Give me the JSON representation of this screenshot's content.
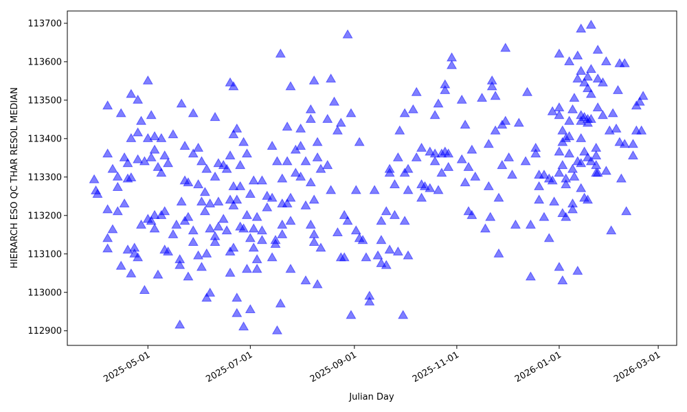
{
  "chart_data": {
    "type": "scatter",
    "x_label": "Julian Day",
    "y_label": "HIERARCH ESO QC THAR RESOL MEDIAN",
    "color": "#0000ff",
    "marker": "triangle",
    "alpha": 0.5,
    "xlim": [
      "2025-03-14",
      "2026-03-12"
    ],
    "xticks": [
      "2025-05-01",
      "2025-07-01",
      "2025-09-01",
      "2025-11-01",
      "2026-01-01",
      "2026-03-01"
    ],
    "ylim": [
      112862,
      113732
    ],
    "yticks": [
      112900,
      113000,
      113100,
      113200,
      113300,
      113400,
      113500,
      113600,
      113700
    ],
    "x": [
      "2025-03-30",
      "2025-03-31",
      "2025-04-01",
      "2025-04-07",
      "2025-04-07",
      "2025-04-07",
      "2025-04-07",
      "2025-04-07",
      "2025-04-10",
      "2025-04-10",
      "2025-04-13",
      "2025-04-13",
      "2025-04-13",
      "2025-04-15",
      "2025-04-15",
      "2025-04-17",
      "2025-04-17",
      "2025-04-19",
      "2025-04-19",
      "2025-04-19",
      "2025-04-21",
      "2025-04-21",
      "2025-04-21",
      "2025-04-21",
      "2025-04-23",
      "2025-04-23",
      "2025-04-25",
      "2025-04-25",
      "2025-04-25",
      "2025-04-25",
      "2025-04-27",
      "2025-04-27",
      "2025-04-29",
      "2025-04-29",
      "2025-05-01",
      "2025-05-01",
      "2025-05-01",
      "2025-05-03",
      "2025-05-03",
      "2025-05-03",
      "2025-05-05",
      "2025-05-05",
      "2025-05-05",
      "2025-05-05",
      "2025-05-07",
      "2025-05-07",
      "2025-05-09",
      "2025-05-09",
      "2025-05-09",
      "2025-05-11",
      "2025-05-11",
      "2025-05-11",
      "2025-05-13",
      "2025-05-13",
      "2025-05-16",
      "2025-05-16",
      "2025-05-18",
      "2025-05-20",
      "2025-05-20",
      "2025-05-20",
      "2025-05-21",
      "2025-05-21",
      "2025-05-23",
      "2025-05-23",
      "2025-05-23",
      "2025-05-25",
      "2025-05-25",
      "2025-05-25",
      "2025-05-28",
      "2025-05-28",
      "2025-05-28",
      "2025-05-28",
      "2025-05-31",
      "2025-05-31",
      "2025-05-31",
      "2025-06-02",
      "2025-06-02",
      "2025-06-02",
      "2025-06-04",
      "2025-06-04",
      "2025-06-05",
      "2025-06-05",
      "2025-06-05",
      "2025-06-07",
      "2025-06-07",
      "2025-06-07",
      "2025-06-10",
      "2025-06-10",
      "2025-06-10",
      "2025-06-10",
      "2025-06-12",
      "2025-06-12",
      "2025-06-12",
      "2025-06-15",
      "2025-06-15",
      "2025-06-17",
      "2025-06-17",
      "2025-06-19",
      "2025-06-19",
      "2025-06-19",
      "2025-06-19",
      "2025-06-19",
      "2025-06-21",
      "2025-06-21",
      "2025-06-21",
      "2025-06-21",
      "2025-06-21",
      "2025-06-23",
      "2025-06-23",
      "2025-06-23",
      "2025-06-23",
      "2025-06-25",
      "2025-06-25",
      "2025-06-25",
      "2025-06-27",
      "2025-06-27",
      "2025-06-27",
      "2025-06-29",
      "2025-06-29",
      "2025-06-29",
      "2025-07-01",
      "2025-07-01",
      "2025-07-01",
      "2025-07-03",
      "2025-07-03",
      "2025-07-03",
      "2025-07-05",
      "2025-07-05",
      "2025-07-05",
      "2025-07-08",
      "2025-07-08",
      "2025-07-08",
      "2025-07-11",
      "2025-07-11",
      "2025-07-14",
      "2025-07-14",
      "2025-07-14",
      "2025-07-16",
      "2025-07-16",
      "2025-07-17",
      "2025-07-17",
      "2025-07-19",
      "2025-07-19",
      "2025-07-20",
      "2025-07-20",
      "2025-07-20",
      "2025-07-20",
      "2025-07-23",
      "2025-07-23",
      "2025-07-23",
      "2025-07-25",
      "2025-07-25",
      "2025-07-25",
      "2025-07-25",
      "2025-07-28",
      "2025-07-28",
      "2025-07-31",
      "2025-07-31",
      "2025-07-31",
      "2025-08-03",
      "2025-08-03",
      "2025-08-03",
      "2025-08-06",
      "2025-08-06",
      "2025-08-06",
      "2025-08-06",
      "2025-08-08",
      "2025-08-08",
      "2025-08-08",
      "2025-08-08",
      "2025-08-10",
      "2025-08-10",
      "2025-08-10",
      "2025-08-12",
      "2025-08-12",
      "2025-08-16",
      "2025-08-16",
      "2025-08-18",
      "2025-08-18",
      "2025-08-20",
      "2025-08-22",
      "2025-08-22",
      "2025-08-24",
      "2025-08-24",
      "2025-08-26",
      "2025-08-26",
      "2025-08-28",
      "2025-08-28",
      "2025-08-30",
      "2025-08-30",
      "2025-09-02",
      "2025-09-02",
      "2025-09-04",
      "2025-09-04",
      "2025-09-06",
      "2025-09-08",
      "2025-09-10",
      "2025-09-10",
      "2025-09-13",
      "2025-09-15",
      "2025-09-17",
      "2025-09-17",
      "2025-09-17",
      "2025-09-20",
      "2025-09-20",
      "2025-09-22",
      "2025-09-22",
      "2025-09-22",
      "2025-09-25",
      "2025-09-25",
      "2025-09-27",
      "2025-09-27",
      "2025-09-28",
      "2025-09-30",
      "2025-10-01",
      "2025-10-01",
      "2025-10-01",
      "2025-10-03",
      "2025-10-03",
      "2025-10-03",
      "2025-10-06",
      "2025-10-08",
      "2025-10-08",
      "2025-10-11",
      "2025-10-11",
      "2025-10-11",
      "2025-10-13",
      "2025-10-16",
      "2025-10-16",
      "2025-10-19",
      "2025-10-19",
      "2025-10-19",
      "2025-10-21",
      "2025-10-21",
      "2025-10-23",
      "2025-10-23",
      "2025-10-25",
      "2025-10-25",
      "2025-10-25",
      "2025-10-27",
      "2025-10-27",
      "2025-10-29",
      "2025-10-29",
      "2025-11-04",
      "2025-11-04",
      "2025-11-06",
      "2025-11-06",
      "2025-11-08",
      "2025-11-08",
      "2025-11-10",
      "2025-11-10",
      "2025-11-12",
      "2025-11-16",
      "2025-11-18",
      "2025-11-20",
      "2025-11-20",
      "2025-11-21",
      "2025-11-22",
      "2025-11-22",
      "2025-11-24",
      "2025-11-24",
      "2025-11-26",
      "2025-11-26",
      "2025-11-28",
      "2025-11-28",
      "2025-11-30",
      "2025-11-30",
      "2025-12-02",
      "2025-12-04",
      "2025-12-06",
      "2025-12-08",
      "2025-12-12",
      "2025-12-13",
      "2025-12-15",
      "2025-12-15",
      "2025-12-18",
      "2025-12-18",
      "2025-12-20",
      "2025-12-20",
      "2025-12-20",
      "2025-12-23",
      "2025-12-23",
      "2025-12-26",
      "2025-12-26",
      "2025-12-28",
      "2025-12-28",
      "2025-12-29",
      "2026-01-01",
      "2026-01-01",
      "2026-01-01",
      "2026-01-01",
      "2026-01-01",
      "2026-01-01",
      "2026-01-03",
      "2026-01-03",
      "2026-01-03",
      "2026-01-03",
      "2026-01-03",
      "2026-01-05",
      "2026-01-05",
      "2026-01-05",
      "2026-01-05",
      "2026-01-07",
      "2026-01-07",
      "2026-01-07",
      "2026-01-07",
      "2026-01-09",
      "2026-01-09",
      "2026-01-09",
      "2026-01-09",
      "2026-01-10",
      "2026-01-10",
      "2026-01-12",
      "2026-01-12",
      "2026-01-12",
      "2026-01-12",
      "2026-01-14",
      "2026-01-14",
      "2026-01-14",
      "2026-01-14",
      "2026-01-14",
      "2026-01-14",
      "2026-01-14",
      "2026-01-16",
      "2026-01-16",
      "2026-01-16",
      "2026-01-16",
      "2026-01-18",
      "2026-01-18",
      "2026-01-18",
      "2026-01-18",
      "2026-01-18",
      "2026-01-18",
      "2026-01-20",
      "2026-01-20",
      "2026-01-20",
      "2026-01-20",
      "2026-01-20",
      "2026-01-23",
      "2026-01-23",
      "2026-01-23",
      "2026-01-23",
      "2026-01-24",
      "2026-01-24",
      "2026-01-24",
      "2026-01-24",
      "2026-01-27",
      "2026-01-27",
      "2026-01-29",
      "2026-01-29",
      "2026-01-31",
      "2026-02-01",
      "2026-02-02",
      "2026-02-04",
      "2026-02-05",
      "2026-02-06",
      "2026-02-06",
      "2026-02-07",
      "2026-02-09",
      "2026-02-09",
      "2026-02-10",
      "2026-02-14",
      "2026-02-14",
      "2026-02-16",
      "2026-02-16",
      "2026-02-18",
      "2026-02-19",
      "2026-02-20"
    ],
    "values": [
      113293,
      113264,
      113255,
      113485,
      113360,
      113215,
      113140,
      113113,
      113320,
      113163,
      113300,
      113273,
      113210,
      113068,
      113465,
      113350,
      113230,
      113295,
      113110,
      113335,
      113515,
      113400,
      113048,
      113298,
      113115,
      113100,
      113415,
      113090,
      113500,
      113345,
      113445,
      113175,
      113340,
      113005,
      113550,
      113400,
      113190,
      113460,
      113350,
      113185,
      113405,
      113370,
      113200,
      113165,
      113045,
      113325,
      113400,
      113310,
      113200,
      113110,
      113210,
      113355,
      113335,
      113105,
      113410,
      113150,
      113175,
      113085,
      113070,
      112915,
      113490,
      113235,
      113380,
      113290,
      113185,
      113285,
      113195,
      113040,
      113465,
      113360,
      113130,
      113160,
      113375,
      113280,
      113095,
      113340,
      113065,
      113235,
      113260,
      113210,
      113320,
      113100,
      112985,
      113165,
      112998,
      113230,
      113455,
      113300,
      113130,
      113145,
      113335,
      113235,
      113170,
      113330,
      113190,
      113320,
      113160,
      113545,
      113355,
      113240,
      113105,
      113050,
      113535,
      113410,
      113275,
      113225,
      113115,
      113425,
      113240,
      112985,
      112945,
      113330,
      113275,
      113170,
      113390,
      113165,
      112910,
      113360,
      113200,
      113060,
      113255,
      113140,
      112955,
      113290,
      113165,
      113115,
      113195,
      113085,
      113060,
      113290,
      113160,
      113135,
      113250,
      113220,
      113380,
      113245,
      113090,
      113135,
      113125,
      113340,
      112900,
      113620,
      112970,
      113295,
      113150,
      113230,
      113175,
      113430,
      113340,
      113230,
      113535,
      113245,
      113185,
      113060,
      113310,
      113370,
      113425,
      113380,
      113300,
      113340,
      113225,
      113030,
      113475,
      113450,
      113285,
      113175,
      113550,
      113240,
      113130,
      113150,
      113390,
      113350,
      113020,
      113320,
      113115,
      113450,
      113330,
      113555,
      113265,
      113495,
      113420,
      113155,
      113090,
      113440,
      113090,
      113200,
      113670,
      113185,
      113465,
      112940,
      113265,
      113160,
      113390,
      113140,
      113135,
      113090,
      112975,
      112990,
      113265,
      113095,
      113075,
      113185,
      113135,
      113070,
      113210,
      113320,
      113310,
      113110,
      113280,
      113200,
      113350,
      113105,
      113420,
      112940,
      113465,
      113310,
      113185,
      113320,
      113265,
      113095,
      113475,
      113520,
      113350,
      113280,
      113245,
      113375,
      113275,
      113365,
      113270,
      113460,
      113340,
      113360,
      113490,
      113265,
      113360,
      113310,
      113540,
      113525,
      113365,
      113325,
      113360,
      113590,
      113610,
      113500,
      113345,
      113435,
      113285,
      113325,
      113210,
      113370,
      113200,
      113300,
      113505,
      113165,
      113385,
      113275,
      113195,
      113550,
      113535,
      113510,
      113420,
      113245,
      113100,
      113330,
      113435,
      113445,
      113635,
      113350,
      113305,
      113175,
      113440,
      113340,
      113520,
      113175,
      113040,
      113375,
      113360,
      113275,
      113305,
      113240,
      113195,
      113305,
      113140,
      113295,
      113470,
      113290,
      113235,
      113620,
      113480,
      113460,
      113365,
      113310,
      113065,
      113420,
      113390,
      113330,
      113205,
      113030,
      113400,
      113295,
      113280,
      113195,
      113600,
      113445,
      113405,
      113360,
      113475,
      113320,
      113230,
      113215,
      113505,
      113300,
      113615,
      113555,
      113340,
      113055,
      113685,
      113575,
      113460,
      113445,
      113400,
      113335,
      113270,
      113545,
      113455,
      113365,
      113245,
      113560,
      113530,
      113450,
      113440,
      113350,
      113240,
      113695,
      113580,
      113515,
      113450,
      113340,
      113375,
      113355,
      113330,
      113310,
      113555,
      113480,
      113630,
      113310,
      113545,
      113460,
      113600,
      113315,
      113420,
      113160,
      113465,
      113425,
      113525,
      113595,
      113390,
      113295,
      113595,
      113385,
      113210,
      113355,
      113385,
      113420,
      113485,
      113495,
      113420,
      113510
    ]
  }
}
